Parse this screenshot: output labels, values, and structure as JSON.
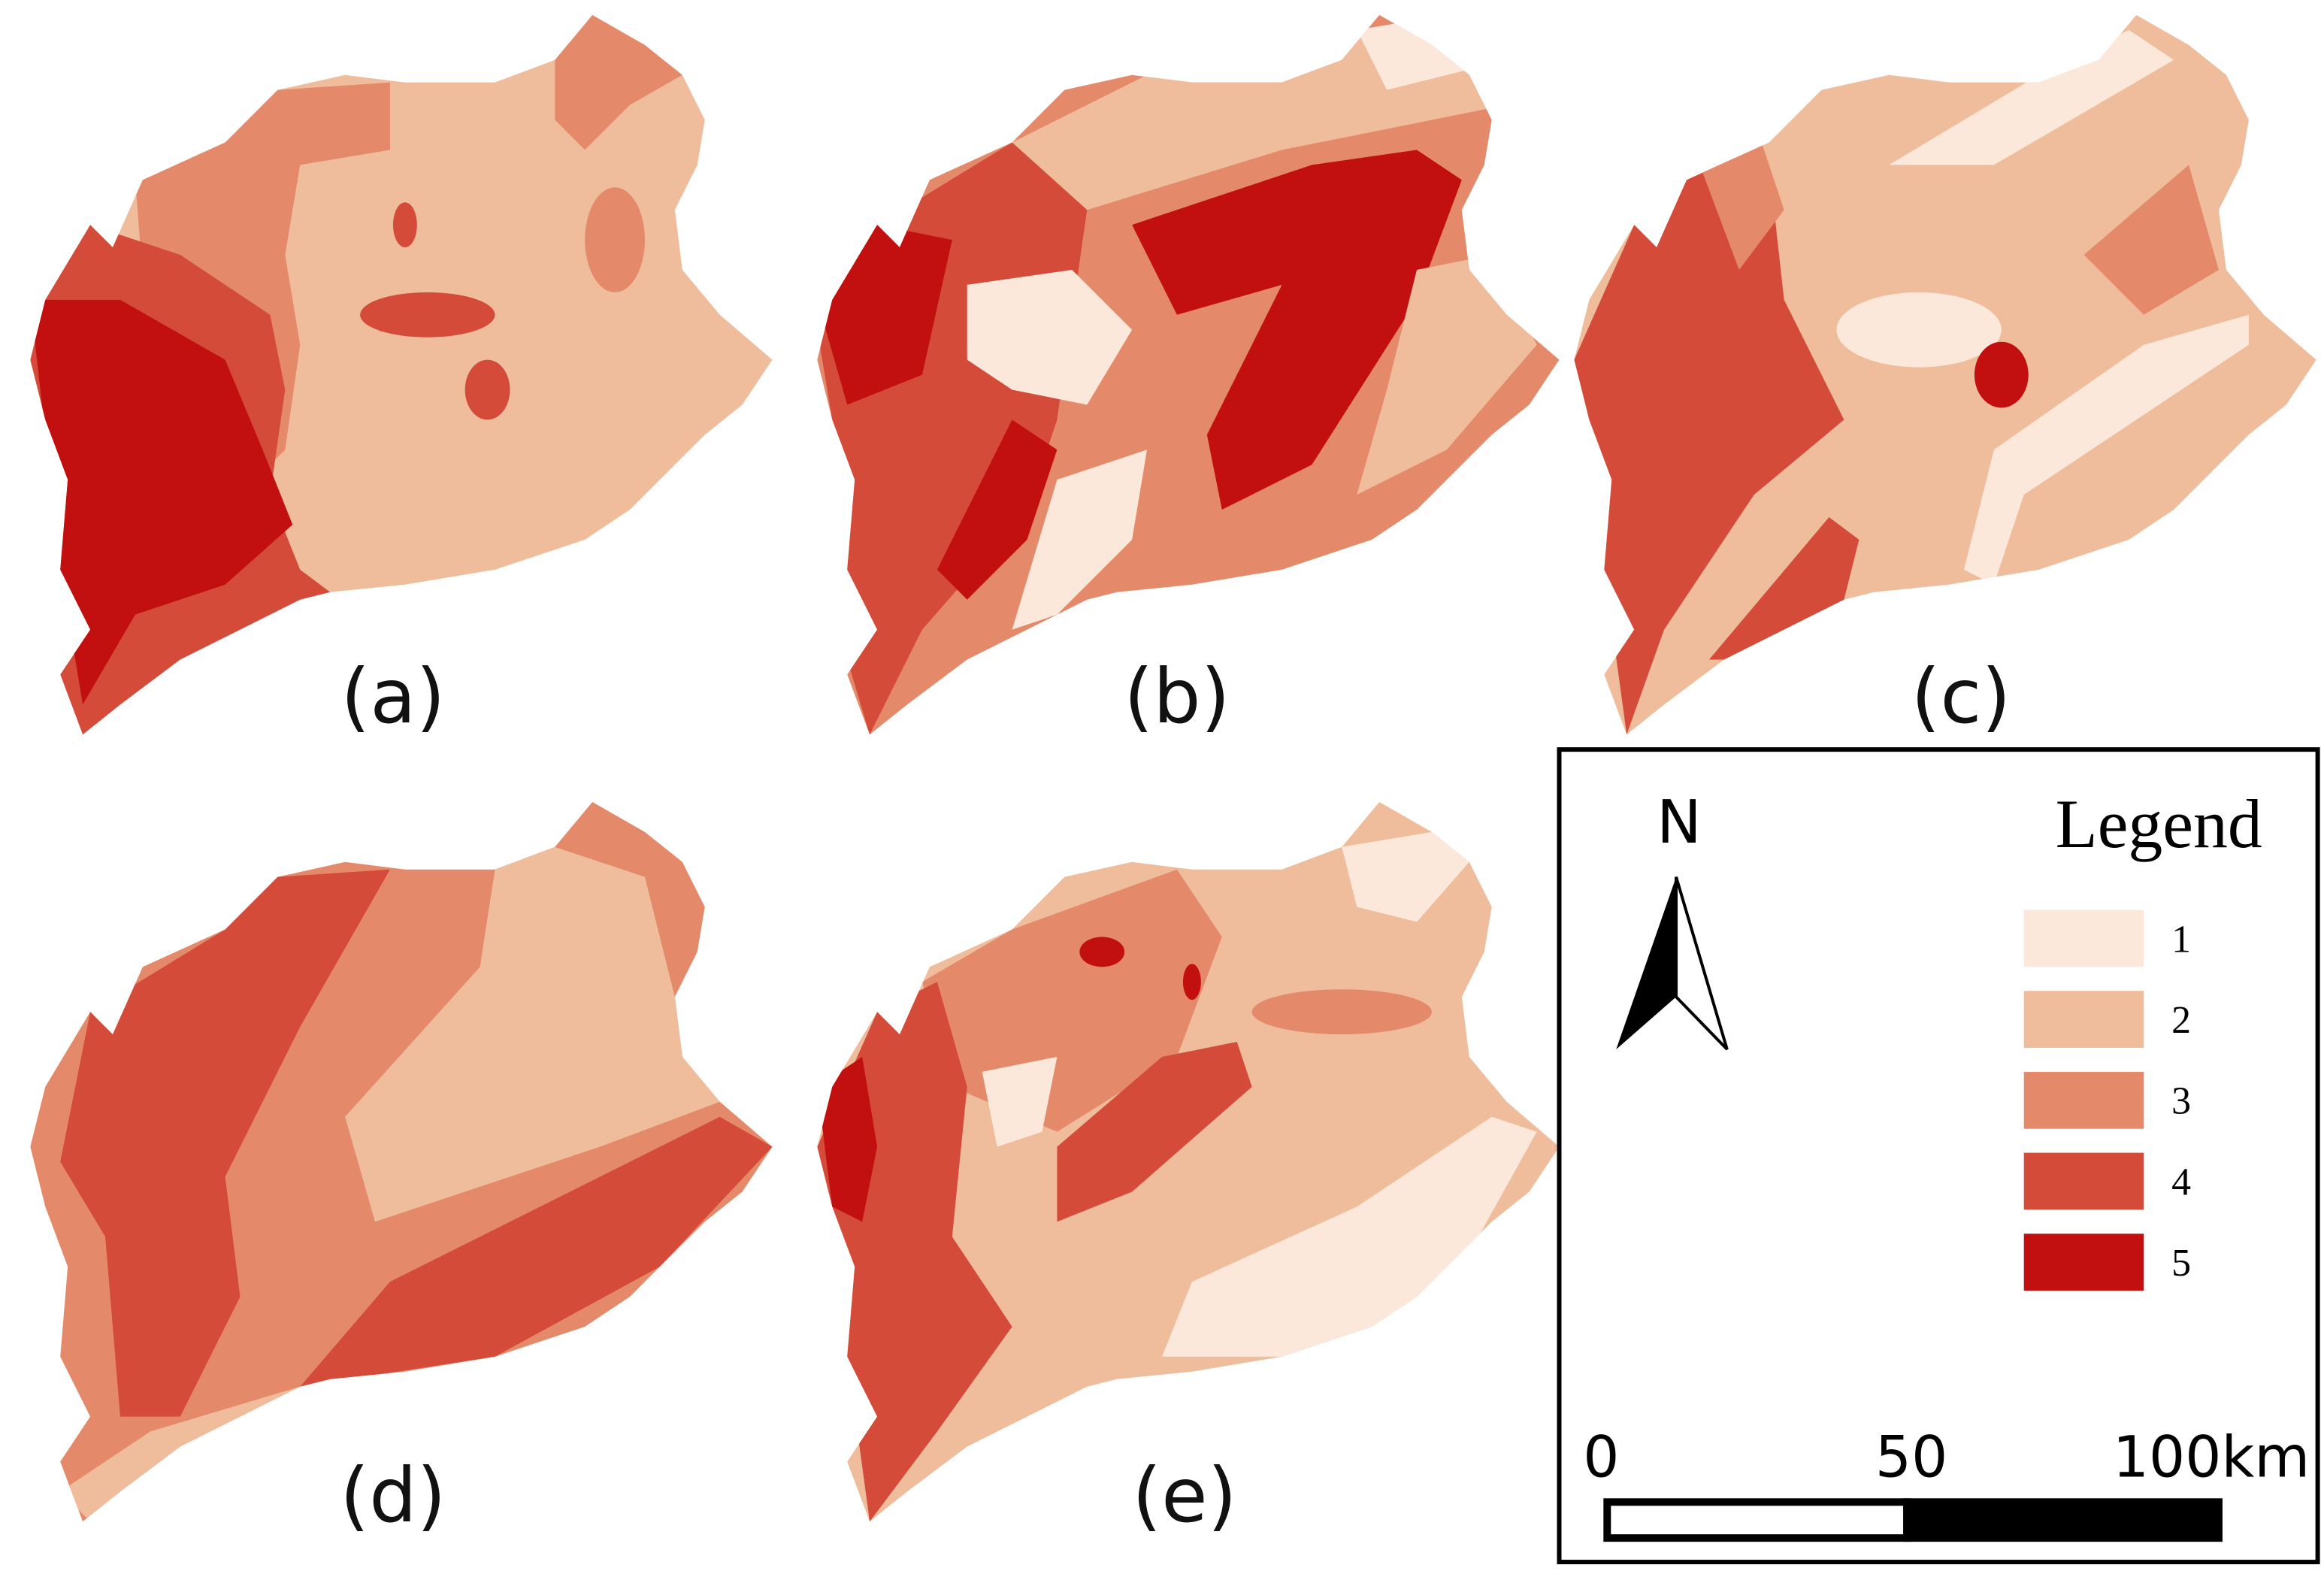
{
  "panels": [
    {
      "label": "(a)"
    },
    {
      "label": "(b)"
    },
    {
      "label": "(c)"
    },
    {
      "label": "(d)"
    },
    {
      "label": "(e)"
    }
  ],
  "north": "N",
  "legend": {
    "title": "Legend",
    "items": [
      {
        "label": "1",
        "color": "#fce8da"
      },
      {
        "label": "2",
        "color": "#f0bd9c"
      },
      {
        "label": "3",
        "color": "#e48a6b"
      },
      {
        "label": "4",
        "color": "#d44b3a"
      },
      {
        "label": "5",
        "color": "#c21010"
      }
    ]
  },
  "scale_bar": {
    "labels": [
      "0",
      "50",
      "100km"
    ]
  }
}
